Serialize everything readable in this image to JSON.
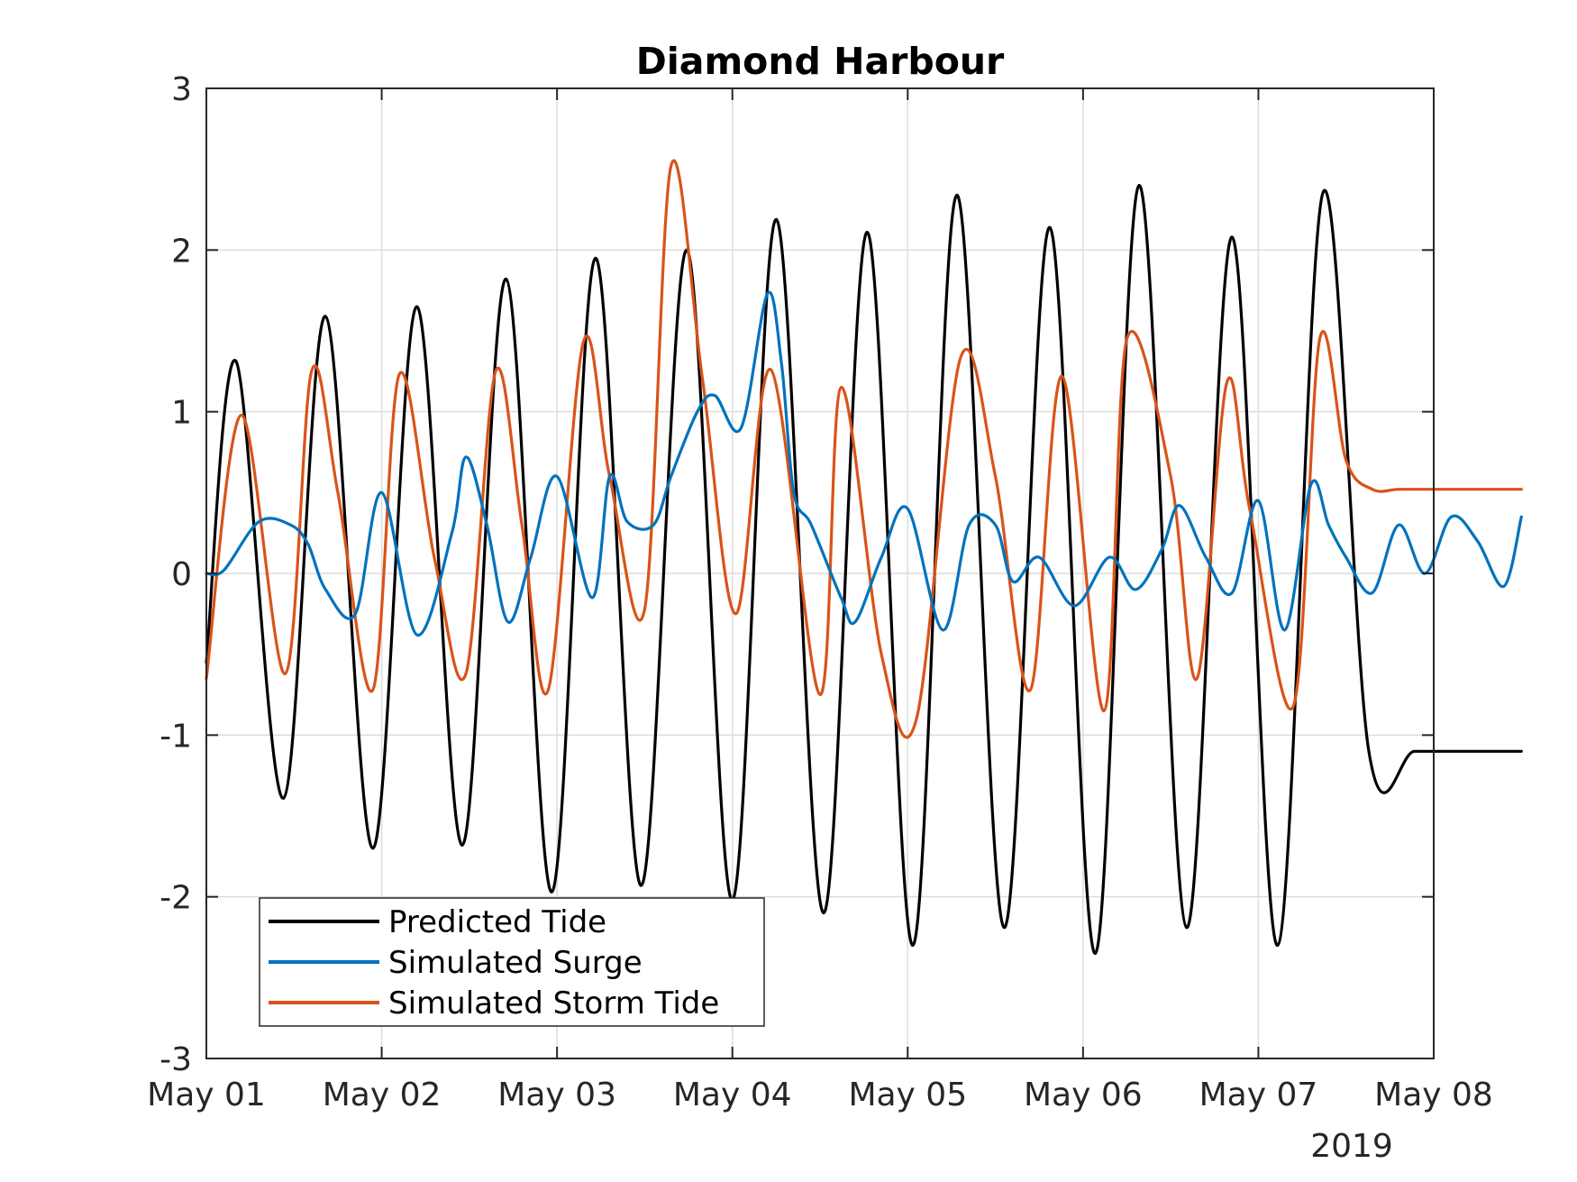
{
  "chart_data": {
    "type": "line",
    "title": "Diamond Harbour",
    "xlabel": "",
    "ylabel": "",
    "x_unit": "days since May 01 2019 00:00",
    "xlim": [
      0,
      7
    ],
    "ylim": [
      -3,
      3
    ],
    "x_ticks": [
      0,
      1,
      2,
      3,
      4,
      5,
      6,
      7
    ],
    "x_tick_labels": [
      "May 01",
      "May 02",
      "May 03",
      "May 04",
      "May 05",
      "May 06",
      "May 07",
      "May 08"
    ],
    "x_secondary_label": "2019",
    "y_ticks": [
      -3,
      -2,
      -1,
      0,
      1,
      2,
      3
    ],
    "y_tick_labels": [
      "-3",
      "-2",
      "-1",
      "0",
      "1",
      "2",
      "3"
    ],
    "grid": true,
    "legend_position": "bottom-left",
    "series": [
      {
        "name": "Predicted Tide",
        "color": "#000000",
        "x": [
          0,
          0.17,
          0.44,
          0.68,
          0.95,
          1.2,
          1.46,
          1.71,
          1.97,
          2.22,
          2.48,
          2.74,
          3.0,
          3.25,
          3.52,
          3.77,
          4.03,
          4.28,
          4.55,
          4.81,
          5.07,
          5.32,
          5.59,
          5.85,
          6.11,
          6.37,
          6.63,
          6.89,
          7.15,
          7.4,
          7.5
        ],
        "y": [
          -0.55,
          1.31,
          -1.39,
          1.59,
          -1.7,
          1.65,
          -1.68,
          1.82,
          -1.97,
          1.95,
          -1.93,
          2.0,
          -2.02,
          2.19,
          -2.1,
          2.11,
          -2.3,
          2.34,
          -2.19,
          2.14,
          -2.35,
          2.4,
          -2.19,
          2.08,
          -2.3,
          2.36,
          -1.1,
          -1.1,
          -1.1,
          -1.1,
          -1.1
        ]
      },
      {
        "name": "Simulated Surge",
        "color": "#0072BD",
        "x": [
          0,
          0.1,
          0.3,
          0.48,
          0.58,
          0.68,
          0.85,
          1.0,
          1.2,
          1.4,
          1.48,
          1.6,
          1.72,
          1.85,
          2.0,
          2.2,
          2.3,
          2.4,
          2.55,
          2.65,
          2.8,
          2.9,
          3.05,
          3.2,
          3.28,
          3.35,
          3.45,
          3.62,
          3.7,
          3.85,
          4.0,
          4.2,
          4.35,
          4.5,
          4.6,
          4.75,
          4.95,
          5.15,
          5.3,
          5.45,
          5.55,
          5.7,
          5.85,
          6.0,
          6.15,
          6.3,
          6.4,
          6.5,
          6.65,
          6.8,
          6.95,
          7.1,
          7.25,
          7.4,
          7.5
        ],
        "y": [
          0.0,
          0.02,
          0.32,
          0.3,
          0.18,
          -0.1,
          -0.25,
          0.5,
          -0.38,
          0.25,
          0.72,
          0.3,
          -0.3,
          0.1,
          0.6,
          -0.15,
          0.6,
          0.32,
          0.3,
          0.6,
          1.0,
          1.1,
          0.9,
          1.73,
          1.3,
          0.5,
          0.3,
          -0.15,
          -0.3,
          0.1,
          0.4,
          -0.35,
          0.3,
          0.3,
          -0.05,
          0.1,
          -0.2,
          0.1,
          -0.1,
          0.15,
          0.42,
          0.1,
          -0.12,
          0.45,
          -0.35,
          0.55,
          0.3,
          0.1,
          -0.12,
          0.3,
          0.0,
          0.35,
          0.2,
          -0.08,
          0.35
        ]
      },
      {
        "name": "Simulated Storm Tide",
        "color": "#D95319",
        "x": [
          0,
          0.2,
          0.45,
          0.6,
          0.75,
          0.95,
          1.1,
          1.3,
          1.48,
          1.65,
          1.8,
          1.95,
          2.15,
          2.3,
          2.5,
          2.65,
          2.83,
          3.02,
          3.22,
          3.5,
          3.62,
          3.85,
          4.05,
          4.3,
          4.5,
          4.7,
          4.88,
          5.12,
          5.25,
          5.5,
          5.65,
          5.82,
          5.95,
          6.2,
          6.35,
          6.5,
          6.65,
          6.8,
          7.0,
          7.12,
          7.35,
          7.5
        ],
        "y": [
          -0.65,
          0.98,
          -0.62,
          1.25,
          0.5,
          -0.72,
          1.23,
          0.1,
          -0.62,
          1.25,
          0.3,
          -0.72,
          1.43,
          0.6,
          -0.22,
          2.52,
          1.2,
          -0.25,
          1.26,
          -0.75,
          1.15,
          -0.5,
          -0.9,
          1.33,
          0.6,
          -0.72,
          1.22,
          -0.85,
          1.45,
          0.6,
          -0.65,
          1.18,
          0.4,
          -0.82,
          1.45,
          0.7,
          0.52,
          0.52,
          0.52,
          0.52,
          0.52,
          0.52
        ]
      }
    ]
  }
}
